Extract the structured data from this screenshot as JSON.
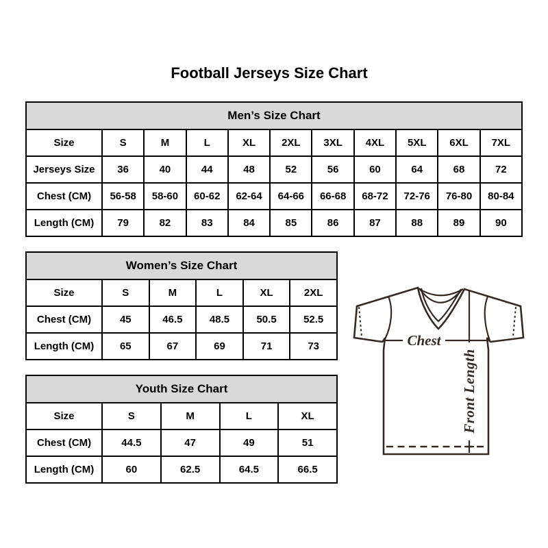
{
  "page": {
    "title": "Football Jerseys Size Chart"
  },
  "tables": [
    {
      "id": "mens",
      "title": "Men’s Size Chart",
      "rows": [
        [
          "Size",
          "S",
          "M",
          "L",
          "XL",
          "2XL",
          "3XL",
          "4XL",
          "5XL",
          "6XL",
          "7XL"
        ],
        [
          "Jerseys Size",
          "36",
          "40",
          "44",
          "48",
          "52",
          "56",
          "60",
          "64",
          "68",
          "72"
        ],
        [
          "Chest (CM)",
          "56-58",
          "58-60",
          "60-62",
          "62-64",
          "64-66",
          "66-68",
          "68-72",
          "72-76",
          "76-80",
          "80-84"
        ],
        [
          "Length (CM)",
          "79",
          "82",
          "83",
          "84",
          "85",
          "86",
          "87",
          "88",
          "89",
          "90"
        ]
      ]
    },
    {
      "id": "womens",
      "title": "Women’s Size Chart",
      "rows": [
        [
          "Size",
          "S",
          "M",
          "L",
          "XL",
          "2XL"
        ],
        [
          "Chest (CM)",
          "45",
          "46.5",
          "48.5",
          "50.5",
          "52.5"
        ],
        [
          "Length (CM)",
          "65",
          "67",
          "69",
          "71",
          "73"
        ]
      ]
    },
    {
      "id": "youth",
      "title": "Youth Size Chart",
      "rows": [
        [
          "Size",
          "S",
          "M",
          "L",
          "XL"
        ],
        [
          "Chest (CM)",
          "44.5",
          "47",
          "49",
          "51"
        ],
        [
          "Length (CM)",
          "60",
          "62.5",
          "64.5",
          "66.5"
        ]
      ]
    }
  ],
  "diagram": {
    "chest_label": "Chest",
    "front_length_label": "Front Length"
  },
  "colors": {
    "background": "#ffffff",
    "table_header_bg": "#d9d9d9",
    "table_border": "#000000",
    "text": "#000000",
    "diagram_line": "#342a25"
  }
}
